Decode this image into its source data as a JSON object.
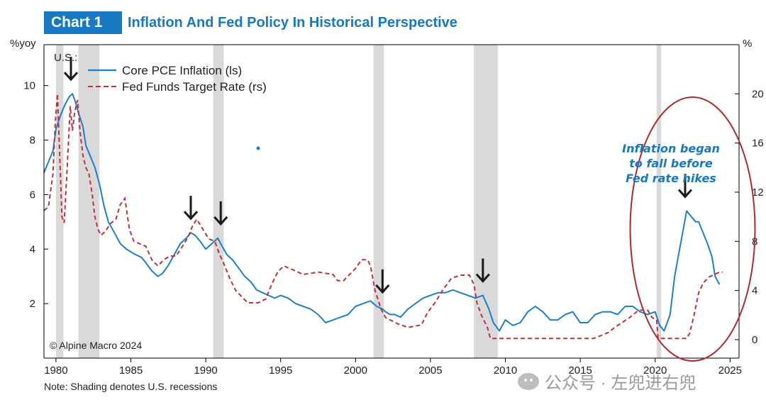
{
  "header": {
    "badge": "Chart 1",
    "title": "Inflation And Fed Policy In Historical Perspective"
  },
  "note": "Note: Shading denotes U.S. recessions",
  "watermark": "公众号 · 左兜进右兜",
  "colors": {
    "brand": "#1679c2",
    "pce": "#1a7fcc",
    "fed": "#c0303a",
    "recession": "#d9d9d9",
    "ellipse": "#b02a30",
    "arrow": "#1a1a1a"
  },
  "chart_data": {
    "type": "line",
    "region_label": "U.S.:",
    "ylabel_left": "%yoy",
    "ylabel_right": "%",
    "copyright": "© Alpine Macro 2024",
    "xlim": [
      1979.2,
      2025.6
    ],
    "ylim_left": [
      0,
      11.5
    ],
    "ylim_right": [
      -1.5,
      24
    ],
    "x_ticks": [
      1980,
      1985,
      1990,
      1995,
      2000,
      2005,
      2010,
      2015,
      2020,
      2025
    ],
    "y_ticks_left": [
      2,
      4,
      6,
      8,
      10
    ],
    "y_ticks_right": [
      0,
      4,
      8,
      12,
      16,
      20
    ],
    "grid": false,
    "legend_position": "top-left",
    "recessions": [
      [
        1980.0,
        1980.5
      ],
      [
        1981.5,
        1982.9
      ],
      [
        1990.5,
        1991.2
      ],
      [
        2001.2,
        2001.9
      ],
      [
        2007.9,
        2009.5
      ],
      [
        2020.1,
        2020.4
      ]
    ],
    "series": [
      {
        "name": "Core PCE Inflation (ls)",
        "axis": "left",
        "style": "solid",
        "x": [
          1979.2,
          1979.5,
          1979.8,
          1980.0,
          1980.3,
          1980.6,
          1980.9,
          1981.1,
          1981.3,
          1981.5,
          1981.8,
          1982.0,
          1982.3,
          1982.6,
          1982.9,
          1983.2,
          1983.5,
          1983.9,
          1984.3,
          1984.7,
          1985.0,
          1985.3,
          1985.7,
          1986.0,
          1986.4,
          1986.8,
          1987.1,
          1987.5,
          1987.9,
          1988.3,
          1988.7,
          1989.0,
          1989.3,
          1989.6,
          1990.0,
          1990.4,
          1990.8,
          1991.0,
          1991.4,
          1991.8,
          1992.2,
          1992.6,
          1993.0,
          1993.4,
          1993.8,
          1994.2,
          1994.6,
          1995.0,
          1995.5,
          1996.0,
          1996.5,
          1997.0,
          1997.5,
          1998.0,
          1998.5,
          1999.0,
          1999.5,
          2000.0,
          2000.5,
          2001.0,
          2001.4,
          2001.8,
          2002.0,
          2002.3,
          2002.6,
          2003.0,
          2003.5,
          2004.0,
          2004.5,
          2005.0,
          2005.5,
          2006.0,
          2006.5,
          2007.0,
          2007.5,
          2008.0,
          2008.5,
          2008.9,
          2009.2,
          2009.6,
          2010.0,
          2010.5,
          2011.0,
          2011.5,
          2012.0,
          2012.5,
          2013.0,
          2013.5,
          2014.0,
          2014.5,
          2015.0,
          2015.5,
          2016.0,
          2016.5,
          2017.0,
          2017.5,
          2018.0,
          2018.5,
          2019.0,
          2019.5,
          2020.0,
          2020.3,
          2020.6,
          2021.0,
          2021.3,
          2021.6,
          2021.9,
          2022.1,
          2022.4,
          2022.7,
          2022.9,
          2023.2,
          2023.5,
          2023.8,
          2024.0,
          2024.3
        ],
        "values": [
          6.8,
          7.2,
          7.6,
          8.4,
          8.9,
          9.3,
          9.6,
          9.7,
          9.4,
          9.0,
          8.5,
          7.8,
          7.4,
          7.0,
          6.4,
          5.6,
          5.0,
          4.6,
          4.2,
          4.0,
          3.9,
          3.8,
          3.7,
          3.5,
          3.2,
          3.0,
          3.1,
          3.4,
          3.8,
          4.2,
          4.4,
          4.6,
          4.5,
          4.3,
          4.0,
          4.2,
          4.4,
          4.2,
          3.8,
          3.6,
          3.3,
          3.0,
          2.8,
          2.5,
          2.4,
          2.3,
          2.2,
          2.3,
          2.2,
          2.0,
          1.9,
          1.8,
          1.6,
          1.3,
          1.4,
          1.5,
          1.6,
          1.9,
          2.0,
          2.1,
          1.9,
          1.8,
          1.7,
          1.6,
          1.6,
          1.5,
          1.8,
          2.0,
          2.2,
          2.3,
          2.4,
          2.4,
          2.5,
          2.4,
          2.3,
          2.2,
          2.3,
          1.8,
          1.3,
          1.0,
          1.4,
          1.2,
          1.3,
          1.7,
          1.9,
          1.7,
          1.4,
          1.4,
          1.6,
          1.7,
          1.3,
          1.3,
          1.6,
          1.7,
          1.7,
          1.6,
          1.9,
          1.9,
          1.7,
          1.6,
          1.7,
          1.2,
          1.0,
          1.6,
          3.0,
          3.9,
          4.8,
          5.4,
          5.2,
          5.0,
          5.0,
          4.6,
          4.2,
          3.7,
          3.0,
          2.7
        ],
        "spike": {
          "x": 1993.5,
          "value": 7.7
        }
      },
      {
        "name": "Fed Funds Target Rate (rs)",
        "axis": "right",
        "style": "dashed",
        "x": [
          1979.2,
          1979.5,
          1979.8,
          1979.95,
          1980.1,
          1980.25,
          1980.4,
          1980.55,
          1980.75,
          1980.95,
          1981.1,
          1981.25,
          1981.45,
          1981.6,
          1981.8,
          1982.0,
          1982.2,
          1982.4,
          1982.6,
          1982.8,
          1983.0,
          1983.3,
          1983.6,
          1984.0,
          1984.3,
          1984.6,
          1984.9,
          1985.2,
          1985.6,
          1986.0,
          1986.4,
          1986.8,
          1987.2,
          1987.6,
          1988.0,
          1988.4,
          1988.8,
          1989.1,
          1989.4,
          1989.8,
          1990.2,
          1990.6,
          1990.9,
          1991.2,
          1991.6,
          1992.0,
          1992.4,
          1992.8,
          1993.5,
          1994.0,
          1994.4,
          1994.8,
          1995.2,
          1995.8,
          1996.5,
          1997.5,
          1998.5,
          1998.8,
          1999.2,
          1999.6,
          2000.0,
          2000.4,
          2000.8,
          2001.0,
          2001.3,
          2001.7,
          2002.0,
          2002.8,
          2003.5,
          2004.4,
          2004.8,
          2005.3,
          2005.8,
          2006.4,
          2007.0,
          2007.6,
          2007.9,
          2008.1,
          2008.4,
          2008.8,
          2009.0,
          2015.9,
          2016.9,
          2017.3,
          2017.8,
          2018.3,
          2018.8,
          2019.0,
          2019.5,
          2019.8,
          2020.1,
          2020.2,
          2022.1,
          2022.3,
          2022.6,
          2022.9,
          2023.2,
          2023.6,
          2024.3,
          2024.5
        ],
        "values": [
          10.5,
          10.8,
          13.5,
          17.5,
          20.0,
          15.0,
          10.0,
          9.5,
          14.0,
          19.0,
          17.0,
          18.5,
          19.5,
          17.0,
          15.0,
          14.0,
          13.5,
          12.0,
          10.0,
          9.0,
          8.5,
          8.8,
          9.4,
          9.8,
          11.0,
          11.5,
          9.0,
          8.0,
          7.8,
          7.6,
          6.5,
          6.0,
          6.5,
          6.8,
          6.8,
          7.5,
          8.3,
          9.2,
          9.8,
          9.0,
          8.2,
          8.0,
          7.0,
          6.2,
          5.0,
          4.0,
          3.5,
          3.0,
          3.0,
          3.3,
          4.5,
          5.5,
          6.0,
          5.7,
          5.3,
          5.5,
          5.3,
          4.8,
          4.8,
          5.3,
          5.8,
          6.5,
          6.5,
          6.0,
          4.0,
          2.5,
          1.8,
          1.3,
          1.0,
          1.2,
          2.2,
          3.0,
          4.0,
          5.0,
          5.25,
          5.25,
          4.5,
          3.0,
          2.0,
          1.0,
          0.1,
          0.1,
          0.6,
          1.0,
          1.4,
          1.8,
          2.3,
          2.4,
          2.4,
          1.8,
          1.6,
          0.1,
          0.1,
          0.5,
          2.0,
          3.8,
          4.6,
          5.1,
          5.5,
          5.5
        ]
      }
    ],
    "annotation": {
      "lines": [
        "Inflation began",
        "to fall before",
        "Fed rate hikes"
      ]
    },
    "arrows": [
      1981.0,
      1989.0,
      1991.0,
      2001.8,
      2008.5,
      2022.0
    ]
  }
}
